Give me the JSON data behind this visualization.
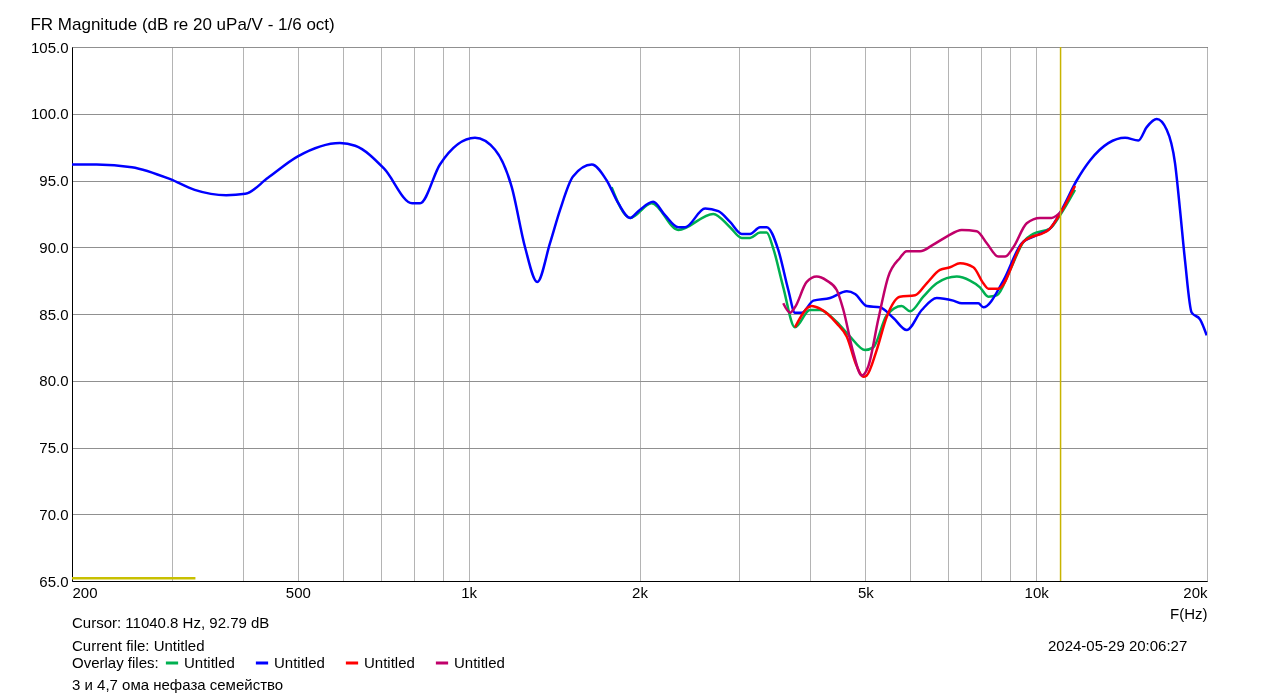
{
  "chart_data": {
    "type": "line",
    "title": "FR Magnitude (dB re 20 uPa/V - 1/6 oct)",
    "xlabel": "F(Hz)",
    "legend_title": "Overlay files:",
    "log": "x",
    "grid": true,
    "legend": "bottom",
    "xlim": [
      200,
      20000
    ],
    "ylim": [
      65,
      105
    ],
    "xticks": [
      200,
      {
        "value": 300,
        "label": null
      },
      {
        "value": 400,
        "label": null
      },
      500,
      {
        "value": 600,
        "label": null
      },
      {
        "value": 700,
        "label": null
      },
      {
        "value": 800,
        "label": null
      },
      {
        "value": 900,
        "label": null
      },
      {
        "value": 1000,
        "label": "1k"
      },
      {
        "value": 2000,
        "label": "2k"
      },
      {
        "value": 3000,
        "label": null
      },
      {
        "value": 4000,
        "label": null
      },
      {
        "value": 5000,
        "label": "5k"
      },
      {
        "value": 6000,
        "label": null
      },
      {
        "value": 7000,
        "label": null
      },
      {
        "value": 8000,
        "label": null
      },
      {
        "value": 9000,
        "label": null
      },
      {
        "value": 10000,
        "label": "10k"
      },
      {
        "value": 20000,
        "label": "20k"
      }
    ],
    "yticks": [
      {
        "value": 65,
        "label": "65.0"
      },
      {
        "value": 70,
        "label": "70.0"
      },
      {
        "value": 75,
        "label": "75.0"
      },
      {
        "value": 80,
        "label": "80.0"
      },
      {
        "value": 85,
        "label": "85.0"
      },
      {
        "value": 90,
        "label": "90.0"
      },
      {
        "value": 95,
        "label": "95.0"
      },
      {
        "value": 100,
        "label": "100.0"
      },
      {
        "value": 105,
        "label": "105.0"
      }
    ],
    "series": [
      {
        "name": "Untitled",
        "color": "#00b050",
        "x": [
          1786,
          1925,
          2101,
          2341,
          2698,
          2888,
          3028,
          3132,
          3262,
          3350,
          3442,
          3584,
          3758,
          3994,
          4160,
          4452,
          4700,
          4994,
          5164,
          5454,
          5794,
          5996,
          6326,
          6680,
          7246,
          7644,
          7962,
          8236,
          8522,
          8996,
          9494,
          9884,
          10576,
          11016,
          11706
        ],
        "values": [
          94.5,
          92.2,
          93.3,
          91.3,
          92.5,
          91.5,
          90.7,
          90.7,
          91.1,
          91.1,
          89.9,
          87.0,
          84.0,
          85.3,
          85.3,
          84.4,
          83.3,
          82.3,
          82.5,
          84.9,
          85.6,
          85.2,
          86.3,
          87.3,
          87.8,
          87.5,
          87.0,
          86.3,
          86.4,
          88.3,
          90.4,
          91.0,
          91.4,
          92.4,
          94.3
        ]
      },
      {
        "name": "Untitled",
        "color": "#0000ff",
        "x": [
          200,
          221,
          255,
          298,
          329,
          374,
          404,
          443,
          500,
          593,
          631,
          709,
          795,
          821,
          890,
          1026,
          1113,
          1191,
          1257,
          1321,
          1391,
          1449,
          1527,
          1648,
          1751,
          1835,
          1925,
          1990,
          2114,
          2218,
          2341,
          2406,
          2610,
          2754,
          2888,
          3028,
          3132,
          3262,
          3350,
          3512,
          3658,
          3758,
          3862,
          4050,
          4334,
          4638,
          4796,
          5028,
          5306,
          5602,
          5914,
          6286,
          6680,
          7144,
          7394,
          7908,
          8070,
          8754,
          9432,
          10022,
          10576,
          11090,
          11786,
          12440,
          13400,
          14344,
          15138,
          15662,
          16310,
          16984,
          17566,
          17926,
          18294,
          18796,
          19442,
          19976
        ],
        "values": [
          96.2,
          96.2,
          96.0,
          95.1,
          94.3,
          93.9,
          94.0,
          95.2,
          96.8,
          97.8,
          97.6,
          95.9,
          93.3,
          93.3,
          96.2,
          98.2,
          97.3,
          94.5,
          90.0,
          87.4,
          90.3,
          92.8,
          95.3,
          96.2,
          95.0,
          93.3,
          92.2,
          92.7,
          93.4,
          92.4,
          91.5,
          91.5,
          92.9,
          92.7,
          91.9,
          91.0,
          91.0,
          91.5,
          91.5,
          89.8,
          86.8,
          85.1,
          85.1,
          86.0,
          86.2,
          86.7,
          86.5,
          85.6,
          85.5,
          84.7,
          83.8,
          85.3,
          86.2,
          86.0,
          85.8,
          85.8,
          85.5,
          87.5,
          90.3,
          90.9,
          91.4,
          92.8,
          95.0,
          96.5,
          97.8,
          98.2,
          98.0,
          99.0,
          99.6,
          98.8,
          96.3,
          92.8,
          89.0,
          85.1,
          84.6,
          83.4
        ]
      },
      {
        "name": "Untitled",
        "color": "#ff0000",
        "x": [
          3758,
          4022,
          4160,
          4452,
          4638,
          4828,
          4960,
          5028,
          5236,
          5454,
          5754,
          6118,
          6414,
          6768,
          7050,
          7342,
          7750,
          8070,
          8236,
          8578,
          9494,
          10576,
          11090,
          11706
        ],
        "values": [
          84.0,
          85.6,
          85.4,
          84.3,
          83.3,
          81.1,
          80.3,
          80.4,
          82.3,
          84.8,
          86.3,
          86.4,
          87.3,
          88.3,
          88.5,
          88.8,
          88.5,
          87.3,
          86.9,
          86.9,
          90.4,
          91.4,
          92.7,
          94.6
        ]
      },
      {
        "name": "Untitled",
        "color": "#c0006a",
        "x": [
          3584,
          3684,
          3758,
          3942,
          4104,
          4276,
          4452,
          4574,
          4762,
          4926,
          5062,
          5270,
          5488,
          5754,
          5914,
          6244,
          6588,
          6956,
          7394,
          7858,
          8184,
          8578,
          8814,
          9116,
          9624,
          10156,
          10650,
          11090
        ],
        "values": [
          85.8,
          85.1,
          85.5,
          87.4,
          87.8,
          87.5,
          86.8,
          85.3,
          82.1,
          80.4,
          81.1,
          84.6,
          87.8,
          89.2,
          89.7,
          89.7,
          90.2,
          90.8,
          91.3,
          91.2,
          90.3,
          89.3,
          89.3,
          90.0,
          91.8,
          92.2,
          92.2,
          92.7
        ]
      },
      {
        "color": "#c8c000",
        "x": [
          200,
          330
        ],
        "values": [
          65.2,
          65.2
        ]
      }
    ],
    "ref_lines": [
      {
        "axis": "x",
        "value": 11040.8,
        "color": "#c8b400"
      }
    ],
    "annotations": [
      "Cursor: 11040.8 Hz, 92.79 dB",
      "Current file: Untitled",
      "2024-05-29  20:06:27",
      "3 и 4,7 ома нефаза семейство"
    ]
  }
}
